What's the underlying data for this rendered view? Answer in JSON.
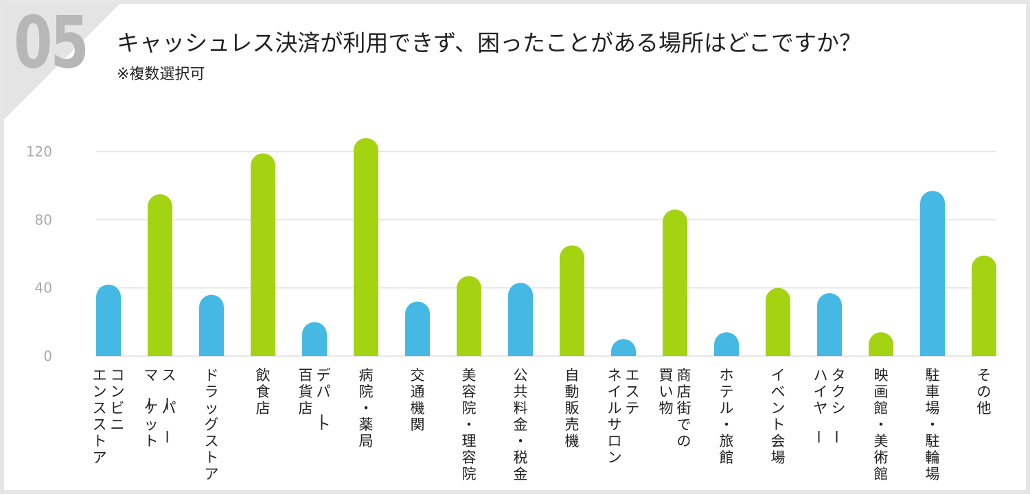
{
  "header": {
    "question_number": "05",
    "title": "キャッシュレス決済が利用できず、困ったことがある場所はどこですか？",
    "subtitle": "※複数選択可"
  },
  "colors": {
    "blue": "#45b9e4",
    "green": "#a3d311",
    "grid": "#dddddd",
    "tick": "#a8a8a8"
  },
  "chart_data": {
    "type": "bar",
    "title": "キャッシュレス決済が利用できず、困ったことがある場所はどこですか？",
    "subtitle": "※複数選択可",
    "xlabel": "",
    "ylabel": "",
    "ylim": [
      0,
      128
    ],
    "yticks": [
      0,
      40,
      80,
      120
    ],
    "grid": true,
    "legend": "none",
    "categories": [
      [
        "コンビニ",
        "エンスストア"
      ],
      [
        "スーパー",
        "マーケット"
      ],
      [
        "ドラッグストア"
      ],
      [
        "飲食店"
      ],
      [
        "デパート",
        "百貨店"
      ],
      [
        "病院・薬局"
      ],
      [
        "交通機関"
      ],
      [
        "美容院・理容院"
      ],
      [
        "公共料金・税金"
      ],
      [
        "自動販売機"
      ],
      [
        "エステ",
        "ネイルサロン"
      ],
      [
        "商店街での",
        "買い物"
      ],
      [
        "ホテル・旅館"
      ],
      [
        "イベント会場"
      ],
      [
        "タクシー",
        "ハイヤー"
      ],
      [
        "映画館・美術館"
      ],
      [
        "駐車場・駐輪場"
      ],
      [
        "その他"
      ]
    ],
    "values": [
      42,
      95,
      36,
      119,
      20,
      128,
      32,
      47,
      43,
      65,
      10,
      86,
      14,
      40,
      37,
      14,
      97,
      59
    ],
    "bar_colors": [
      "blue",
      "green",
      "blue",
      "green",
      "blue",
      "green",
      "blue",
      "green",
      "blue",
      "green",
      "blue",
      "green",
      "blue",
      "green",
      "blue",
      "green",
      "blue",
      "green"
    ]
  }
}
